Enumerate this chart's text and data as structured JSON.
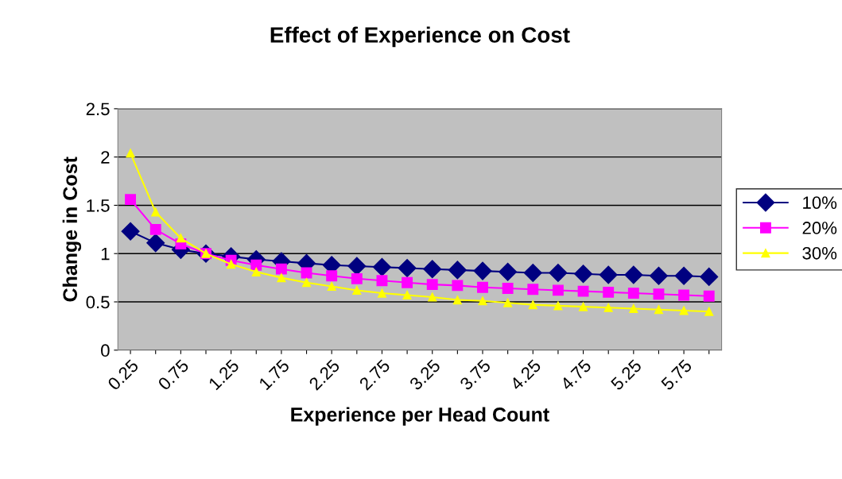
{
  "chart_data": {
    "type": "line",
    "title": "Effect of Experience on Cost",
    "xlabel": "Experience per Head Count",
    "ylabel": "Change in Cost",
    "categories": [
      "0.25",
      null,
      "0.75",
      null,
      "1.25",
      null,
      "1.75",
      null,
      "2.25",
      null,
      "2.75",
      null,
      "3.25",
      null,
      "3.75",
      null,
      "4.25",
      null,
      "4.75",
      null,
      "5.25",
      null,
      "5.75",
      null
    ],
    "series": [
      {
        "name": "10%",
        "color": "#000080",
        "marker": "diamond",
        "values": [
          1.23,
          1.11,
          1.04,
          1,
          0.97,
          0.94,
          0.92,
          0.9,
          0.88,
          0.87,
          0.86,
          0.85,
          0.84,
          0.83,
          0.82,
          0.81,
          0.8,
          0.8,
          0.79,
          0.78,
          0.78,
          0.77,
          0.77,
          0.76
        ]
      },
      {
        "name": "20%",
        "color": "#ff00ff",
        "marker": "square",
        "values": [
          1.56,
          1.25,
          1.1,
          1,
          0.93,
          0.88,
          0.84,
          0.8,
          0.77,
          0.74,
          0.72,
          0.7,
          0.68,
          0.67,
          0.65,
          0.64,
          0.63,
          0.62,
          0.61,
          0.6,
          0.59,
          0.58,
          0.57,
          0.56
        ]
      },
      {
        "name": "30%",
        "color": "#ffff00",
        "marker": "triangle",
        "values": [
          2.04,
          1.43,
          1.16,
          1,
          0.89,
          0.81,
          0.75,
          0.7,
          0.66,
          0.62,
          0.59,
          0.57,
          0.55,
          0.52,
          0.51,
          0.49,
          0.47,
          0.46,
          0.45,
          0.44,
          0.43,
          0.42,
          0.41,
          0.4
        ]
      }
    ],
    "ylim": [
      0,
      2.5
    ],
    "yticks": [
      0,
      0.5,
      1,
      1.5,
      2,
      2.5
    ],
    "grid": "y",
    "legend": "right",
    "line_style": "solid"
  }
}
